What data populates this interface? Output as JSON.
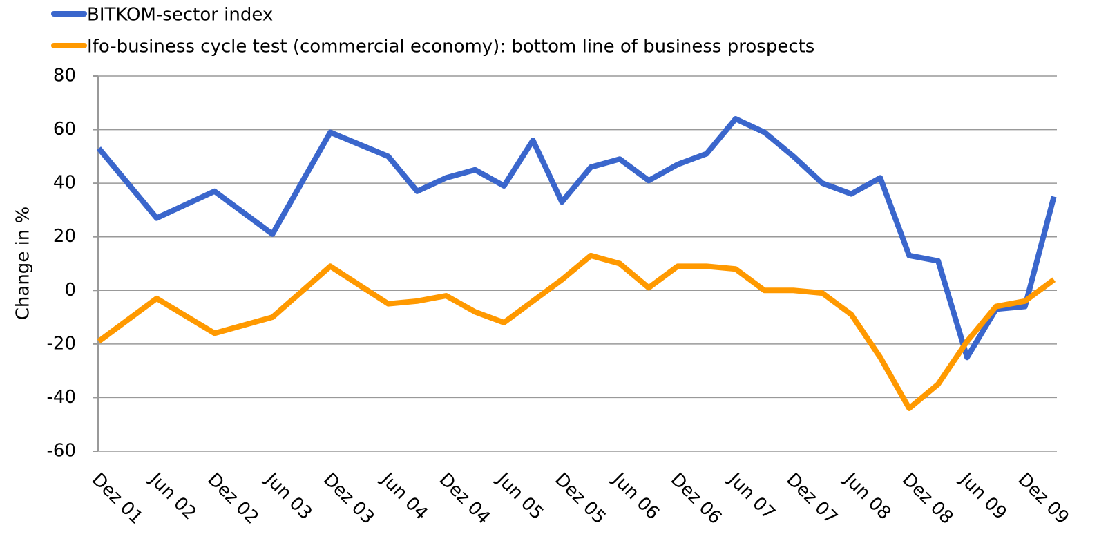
{
  "chart_data": {
    "type": "line",
    "y_label": "Change in %",
    "categories": [
      "Dez 01",
      null,
      "Jun 02",
      null,
      "Dez 02",
      null,
      "Jun 03",
      null,
      "Dez 03",
      null,
      "Jun 04",
      null,
      "Dez 04",
      null,
      "Jun 05",
      null,
      "Dez 05",
      null,
      "Jun 06",
      null,
      "Dez 06",
      null,
      "Jun 07",
      null,
      "Dez 07",
      null,
      "Jun 08",
      null,
      "Dez 08",
      null,
      "Jun 09",
      null,
      "Dez 09",
      null
    ],
    "series": [
      {
        "name": "BITKOM-sector index",
        "color": "#3a66cc",
        "values": [
          53,
          null,
          27,
          null,
          37,
          null,
          21,
          null,
          59,
          null,
          50,
          37,
          42,
          45,
          39,
          56,
          33,
          46,
          49,
          41,
          47,
          51,
          64,
          59,
          50,
          40,
          36,
          42,
          13,
          11,
          -25,
          -7,
          -6,
          35
        ]
      },
      {
        "name": "Ifo-business cycle test (commercial economy): bottom line of business prospects",
        "color": "#ff9900",
        "values": [
          -19,
          null,
          -3,
          null,
          -16,
          null,
          -10,
          null,
          9,
          null,
          -5,
          -4,
          -2,
          -8,
          -12,
          -4,
          4,
          13,
          10,
          1,
          9,
          9,
          8,
          0,
          0,
          -1,
          -9,
          -25,
          -44,
          -35,
          -19,
          -6,
          -4,
          4
        ]
      }
    ],
    "span_gaps": true,
    "ylim": [
      -60,
      80
    ],
    "yticks": [
      -60,
      -40,
      -20,
      0,
      20,
      40,
      60,
      80
    ],
    "grid": true,
    "legend": "top"
  }
}
